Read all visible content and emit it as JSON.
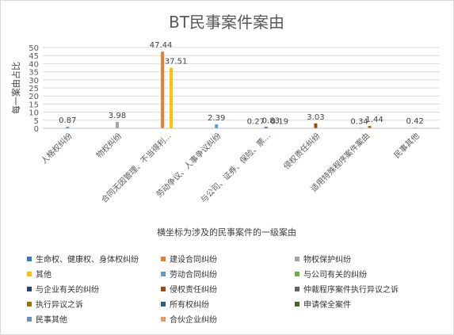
{
  "chart_data": {
    "type": "bar",
    "title": "BT民事案件案由",
    "xlabel": "横坐标为涉及的民事案件的一级案由",
    "ylabel": "每一案由占比",
    "ylim": [
      0,
      50
    ],
    "yticks": [
      "0",
      "5",
      "10",
      "15",
      "20",
      "25",
      "30",
      "35",
      "40",
      "45",
      "50"
    ],
    "grid": true,
    "legend_position": "bottom",
    "categories": [
      "人格权纠纷",
      "物权纠纷",
      "合同无因管理、不当得利...",
      "劳动争议、人事争议纠纷",
      "与公司、证券、保险、票...",
      "侵权责任纠纷",
      "适用特殊程序案件案由",
      "民事其他"
    ],
    "series": [
      {
        "name": "生命权、健康权、身体权纠纷",
        "color": "#4472C4",
        "values": [
          0.87,
          null,
          null,
          null,
          null,
          null,
          null,
          null
        ]
      },
      {
        "name": "建设合同纠纷",
        "color": "#ED7D31",
        "values": [
          null,
          null,
          47.44,
          null,
          null,
          null,
          null,
          null
        ]
      },
      {
        "name": "物权保护纠纷",
        "color": "#A5A5A5",
        "values": [
          null,
          3.98,
          null,
          null,
          null,
          null,
          null,
          null
        ]
      },
      {
        "name": "其他",
        "color": "#FFC000",
        "values": [
          null,
          null,
          37.51,
          null,
          null,
          null,
          null,
          null
        ]
      },
      {
        "name": "劳动合同纠纷",
        "color": "#5B9BD5",
        "values": [
          null,
          null,
          null,
          2.39,
          null,
          null,
          null,
          null
        ]
      },
      {
        "name": "与公司有关的纠纷",
        "color": "#70AD47",
        "values": [
          null,
          null,
          null,
          null,
          0.27,
          null,
          null,
          null
        ]
      },
      {
        "name": "与企业有关的纠纷",
        "color": "#264478",
        "values": [
          null,
          null,
          null,
          null,
          0.83,
          null,
          null,
          null
        ]
      },
      {
        "name": "侵权责任纠纷",
        "color": "#9E480E",
        "values": [
          null,
          null,
          null,
          null,
          null,
          3.03,
          null,
          null
        ]
      },
      {
        "name": "仲裁程序案件执行异议之诉",
        "color": "#636363",
        "values": [
          null,
          null,
          null,
          null,
          null,
          null,
          0.34,
          null
        ]
      },
      {
        "name": "执行异议之诉",
        "color": "#997300",
        "values": [
          null,
          null,
          null,
          null,
          null,
          null,
          1.44,
          null
        ]
      },
      {
        "name": "所有权纠纷",
        "color": "#255E91",
        "values": [
          null,
          null,
          null,
          null,
          null,
          null,
          null,
          null
        ]
      },
      {
        "name": "申请保全案件",
        "color": "#43682B",
        "values": [
          null,
          null,
          null,
          null,
          null,
          null,
          null,
          null
        ]
      },
      {
        "name": "民事其他",
        "color": "#698ED0",
        "values": [
          null,
          null,
          null,
          null,
          null,
          null,
          null,
          0.42
        ]
      },
      {
        "name": "合伙企业纠纷",
        "color": "#F1975A",
        "values": [
          null,
          null,
          null,
          null,
          0.19,
          null,
          null,
          null
        ]
      }
    ]
  }
}
